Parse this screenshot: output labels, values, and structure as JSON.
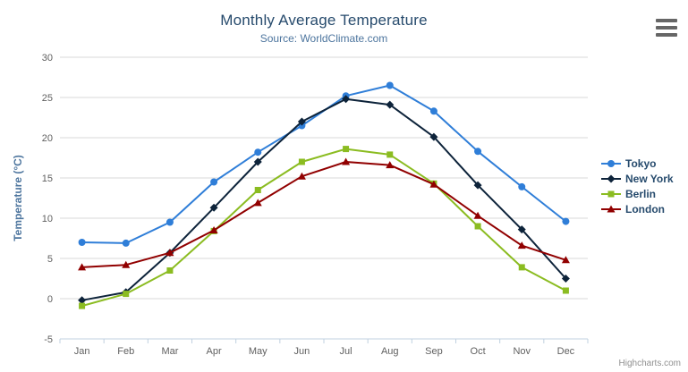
{
  "chart_data": {
    "type": "line",
    "title": "Monthly Average Temperature",
    "subtitle": "Source: WorldClimate.com",
    "ylabel": "Temperature (°C)",
    "xlabel": "",
    "ylim": [
      -5,
      30
    ],
    "ytick_interval": 5,
    "grid": true,
    "legend_position": "right",
    "credit": "Highcharts.com",
    "categories": [
      "Jan",
      "Feb",
      "Mar",
      "Apr",
      "May",
      "Jun",
      "Jul",
      "Aug",
      "Sep",
      "Oct",
      "Nov",
      "Dec"
    ],
    "series": [
      {
        "name": "Tokyo",
        "color": "#2f7ed8",
        "marker": "circle",
        "values": [
          7.0,
          6.9,
          9.5,
          14.5,
          18.2,
          21.5,
          25.2,
          26.5,
          23.3,
          18.3,
          13.9,
          9.6
        ]
      },
      {
        "name": "New York",
        "color": "#0d233a",
        "marker": "diamond",
        "values": [
          -0.2,
          0.8,
          5.7,
          11.3,
          17.0,
          22.0,
          24.8,
          24.1,
          20.1,
          14.1,
          8.6,
          2.5
        ]
      },
      {
        "name": "Berlin",
        "color": "#8bbc21",
        "marker": "square",
        "values": [
          -0.9,
          0.6,
          3.5,
          8.4,
          13.5,
          17.0,
          18.6,
          17.9,
          14.3,
          9.0,
          3.9,
          1.0
        ]
      },
      {
        "name": "London",
        "color": "#910000",
        "marker": "triangle",
        "values": [
          3.9,
          4.2,
          5.7,
          8.5,
          11.9,
          15.2,
          17.0,
          16.6,
          14.2,
          10.3,
          6.6,
          4.8
        ]
      }
    ]
  },
  "colors": {
    "title": "#274b6d",
    "subtitle": "#4d759e",
    "axis_label": "#606060",
    "axis_title": "#4d759e",
    "gridline": "#d8d8d8",
    "axis_line": "#c0d0e0",
    "credit": "#909090",
    "menu_icon": "#666666"
  },
  "menu": {
    "icon": "hamburger-icon"
  }
}
